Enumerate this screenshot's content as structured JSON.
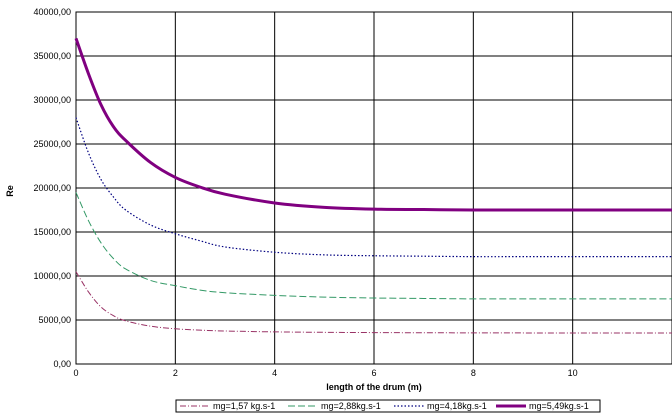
{
  "chart_data": {
    "type": "line",
    "title": "",
    "xlabel": "length of the drum (m)",
    "ylabel": "Re",
    "xlim": [
      0,
      12
    ],
    "ylim": [
      0,
      40000
    ],
    "x_ticks": [
      0,
      2,
      4,
      6,
      8,
      10
    ],
    "x_tick_labels": [
      "0",
      "2",
      "4",
      "6",
      "8",
      "10"
    ],
    "y_ticks": [
      0,
      5000,
      10000,
      15000,
      20000,
      25000,
      30000,
      35000,
      40000
    ],
    "y_tick_labels": [
      "0,00",
      "5000,00",
      "10000,00",
      "15000,00",
      "20000,00",
      "25000,00",
      "30000,00",
      "35000,00",
      "40000,00"
    ],
    "grid": true,
    "legend_position": "bottom",
    "series": [
      {
        "name": "mg=1,57 kg.s-1",
        "color": "#993366",
        "style": "dash-dot",
        "x": [
          0,
          0.25,
          0.5,
          0.75,
          1,
          1.5,
          2,
          2.5,
          3,
          4,
          5,
          6,
          7,
          8,
          9,
          10,
          11,
          12
        ],
        "values": [
          10500,
          8200,
          6500,
          5500,
          4900,
          4300,
          4000,
          3850,
          3750,
          3650,
          3600,
          3570,
          3550,
          3540,
          3530,
          3520,
          3520,
          3520
        ]
      },
      {
        "name": "mg=2,88kg.s-1",
        "color": "#339966",
        "style": "dash",
        "x": [
          0,
          0.25,
          0.5,
          0.75,
          1,
          1.5,
          2,
          2.5,
          3,
          4,
          5,
          6,
          7,
          8,
          9,
          10,
          11,
          12
        ],
        "values": [
          19500,
          16300,
          13800,
          12000,
          10800,
          9500,
          8900,
          8400,
          8100,
          7800,
          7600,
          7500,
          7450,
          7400,
          7400,
          7400,
          7400,
          7400
        ]
      },
      {
        "name": "mg=4,18kg.s-1",
        "color": "#000080",
        "style": "dot",
        "x": [
          0,
          0.25,
          0.5,
          0.75,
          1,
          1.5,
          2,
          2.5,
          3,
          4,
          5,
          6,
          7,
          8,
          9,
          10,
          11,
          12
        ],
        "values": [
          28000,
          24000,
          21000,
          19000,
          17500,
          15800,
          14800,
          14000,
          13300,
          12700,
          12400,
          12300,
          12250,
          12200,
          12200,
          12200,
          12200,
          12200
        ]
      },
      {
        "name": "mg=5,49kg.s-1",
        "color": "#800080",
        "style": "solid",
        "x": [
          0,
          0.25,
          0.5,
          0.75,
          1,
          1.5,
          2,
          2.5,
          3,
          4,
          5,
          6,
          7,
          8,
          9,
          10,
          11,
          12
        ],
        "values": [
          37000,
          33000,
          29500,
          27000,
          25400,
          22900,
          21200,
          20100,
          19300,
          18300,
          17800,
          17600,
          17550,
          17500,
          17500,
          17500,
          17500,
          17500
        ]
      }
    ]
  }
}
